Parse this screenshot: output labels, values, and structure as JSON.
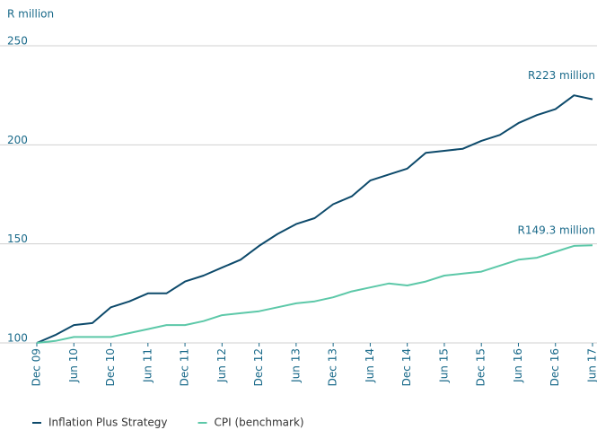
{
  "chart_data": {
    "type": "line",
    "y_label": "R million",
    "categories": [
      "Dec 09",
      null,
      "Jun 10",
      null,
      "Dec 10",
      null,
      "Jun 11",
      null,
      "Dec 11",
      null,
      "Jun 12",
      null,
      "Dec 12",
      null,
      "Jun 13",
      null,
      "Dec 13",
      null,
      "Jun 14",
      null,
      "Dec 14",
      null,
      "Jun 15",
      null,
      "Dec 15",
      null,
      "Jun 16",
      null,
      "Dec 16",
      null,
      "Jun 17"
    ],
    "series": [
      {
        "name": "Inflation Plus Strategy",
        "color": "#0d4a6b",
        "values": [
          100,
          104,
          109,
          110,
          118,
          121,
          125,
          125,
          131,
          134,
          138,
          142,
          149,
          155,
          160,
          163,
          170,
          174,
          182,
          185,
          188,
          196,
          197,
          198,
          202,
          205,
          211,
          215,
          218,
          225,
          223
        ]
      },
      {
        "name": "CPI (benchmark)",
        "color": "#5cc8a8",
        "values": [
          100,
          101,
          103,
          103,
          103,
          105,
          107,
          109,
          109,
          111,
          114,
          115,
          116,
          118,
          120,
          121,
          123,
          126,
          128,
          130,
          129,
          131,
          134,
          135,
          136,
          139,
          142,
          143,
          146,
          149,
          149.3
        ]
      }
    ],
    "annotations": [
      "R223 million",
      "R149.3 million"
    ],
    "ylim": [
      100,
      250
    ],
    "yticks": [
      100,
      150,
      200,
      250
    ],
    "grid": true,
    "legend": "bottom"
  }
}
